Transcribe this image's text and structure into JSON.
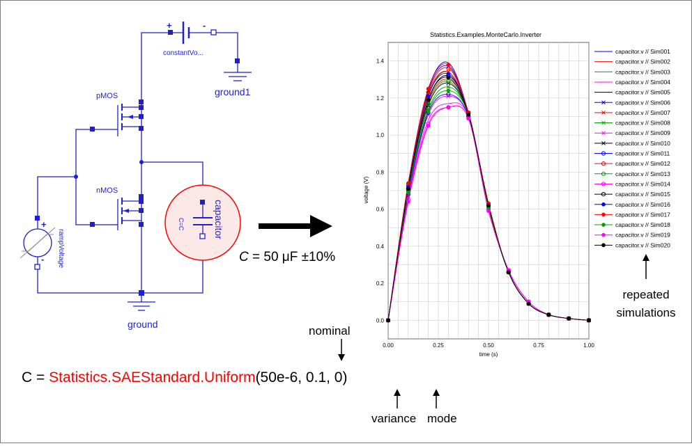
{
  "schematic": {
    "constant_voltage_label": "constantVo...",
    "ground1_label": "ground1",
    "pmos_label": "pMOS",
    "nmos_label": "nMOS",
    "ramp_label": "rampVoltage",
    "capacitor_label": "capacitor",
    "capacitor_param": "C=C",
    "ground_label": "ground",
    "plus": "+",
    "minus": "-"
  },
  "annotations": {
    "capacitance_symbol": "C",
    "capacitance_value": " = 50 μF ±10%",
    "formula_lhs": "C = ",
    "formula_func": "Statistics.SAEStandard.Uniform",
    "formula_args": "(50e-6, 0.1, 0)",
    "nominal": "nominal",
    "variance": "variance",
    "mode": "mode",
    "repeated": "repeated",
    "simulations": "simulations"
  },
  "colors": {
    "accent_red": "#ff0000",
    "schematic_blue": "#1f1fcc",
    "highlight_circle": "#ff0000"
  },
  "chart_data": {
    "type": "line",
    "title": "Statistics.Examples.MonteCarlo.Inverter",
    "xlabel": "time (s)",
    "ylabel": "voltage (V)",
    "xlim": [
      0,
      1
    ],
    "ylim": [
      -0.1,
      1.5
    ],
    "x_ticks": [
      "0.00",
      "0.25",
      "0.50",
      "0.75",
      "1.00"
    ],
    "y_ticks": [
      "0.0",
      "0.2",
      "0.4",
      "0.6",
      "0.8",
      "1.0",
      "1.2",
      "1.4"
    ],
    "grid": true,
    "legend_position": "right",
    "x": [
      0,
      0.1,
      0.2,
      0.3,
      0.4,
      0.5,
      0.6,
      0.7,
      0.8,
      0.9,
      1.0
    ],
    "series": [
      {
        "name": "capacitor.v // Sim001",
        "color": "#0000ff",
        "marker": "none",
        "values": [
          0,
          0.74,
          1.25,
          1.39,
          1.12,
          0.62,
          0.26,
          0.09,
          0.03,
          0.01,
          0
        ]
      },
      {
        "name": "capacitor.v // Sim002",
        "color": "#ff0000",
        "marker": "none",
        "values": [
          0,
          0.7,
          1.18,
          1.3,
          1.12,
          0.62,
          0.26,
          0.09,
          0.03,
          0.01,
          0
        ]
      },
      {
        "name": "capacitor.v // Sim003",
        "color": "#00a000",
        "marker": "none",
        "values": [
          0,
          0.72,
          1.21,
          1.34,
          1.12,
          0.62,
          0.26,
          0.09,
          0.03,
          0.01,
          0
        ]
      },
      {
        "name": "capacitor.v // Sim004",
        "color": "#ff00ff",
        "marker": "none",
        "values": [
          0,
          0.66,
          1.08,
          1.17,
          1.1,
          0.6,
          0.27,
          0.1,
          0.03,
          0.01,
          0
        ]
      },
      {
        "name": "capacitor.v // Sim005",
        "color": "#000000",
        "marker": "none",
        "values": [
          0,
          0.71,
          1.19,
          1.32,
          1.12,
          0.62,
          0.26,
          0.09,
          0.03,
          0.01,
          0
        ]
      },
      {
        "name": "capacitor.v // Sim006",
        "color": "#0000ff",
        "marker": "x",
        "values": [
          0,
          0.73,
          1.24,
          1.37,
          1.12,
          0.62,
          0.26,
          0.09,
          0.03,
          0.01,
          0
        ]
      },
      {
        "name": "capacitor.v // Sim007",
        "color": "#ff0000",
        "marker": "x",
        "values": [
          0,
          0.72,
          1.22,
          1.34,
          1.12,
          0.62,
          0.26,
          0.09,
          0.03,
          0.01,
          0
        ]
      },
      {
        "name": "capacitor.v // Sim008",
        "color": "#00a000",
        "marker": "x",
        "values": [
          0,
          0.69,
          1.14,
          1.26,
          1.11,
          0.61,
          0.26,
          0.09,
          0.03,
          0.01,
          0
        ]
      },
      {
        "name": "capacitor.v // Sim009",
        "color": "#ff00ff",
        "marker": "x",
        "values": [
          0,
          0.67,
          1.11,
          1.21,
          1.1,
          0.6,
          0.27,
          0.1,
          0.03,
          0.01,
          0
        ]
      },
      {
        "name": "capacitor.v // Sim010",
        "color": "#000000",
        "marker": "x",
        "values": [
          0,
          0.7,
          1.16,
          1.28,
          1.11,
          0.61,
          0.26,
          0.09,
          0.03,
          0.01,
          0
        ]
      },
      {
        "name": "capacitor.v // Sim011",
        "color": "#0000ff",
        "marker": "o",
        "values": [
          0,
          0.68,
          1.12,
          1.22,
          1.1,
          0.61,
          0.26,
          0.09,
          0.03,
          0.01,
          0
        ]
      },
      {
        "name": "capacitor.v // Sim012",
        "color": "#ff0000",
        "marker": "o",
        "values": [
          0,
          0.73,
          1.23,
          1.36,
          1.12,
          0.63,
          0.26,
          0.09,
          0.03,
          0.01,
          0
        ]
      },
      {
        "name": "capacitor.v // Sim013",
        "color": "#00a000",
        "marker": "o",
        "values": [
          0,
          0.7,
          1.17,
          1.29,
          1.11,
          0.61,
          0.26,
          0.09,
          0.03,
          0.01,
          0
        ]
      },
      {
        "name": "capacitor.v // Sim014",
        "color": "#ff00ff",
        "marker": "o",
        "values": [
          0,
          0.65,
          1.06,
          1.15,
          1.09,
          0.6,
          0.27,
          0.1,
          0.03,
          0.01,
          0
        ]
      },
      {
        "name": "capacitor.v // Sim015",
        "color": "#000000",
        "marker": "o",
        "values": [
          0,
          0.71,
          1.19,
          1.32,
          1.12,
          0.62,
          0.26,
          0.09,
          0.03,
          0.01,
          0
        ]
      },
      {
        "name": "capacitor.v // Sim016",
        "color": "#0000ff",
        "marker": "dot",
        "values": [
          0,
          0.72,
          1.21,
          1.33,
          1.12,
          0.62,
          0.26,
          0.09,
          0.03,
          0.01,
          0
        ]
      },
      {
        "name": "capacitor.v // Sim017",
        "color": "#ff0000",
        "marker": "dot",
        "values": [
          0,
          0.74,
          1.25,
          1.38,
          1.12,
          0.63,
          0.26,
          0.09,
          0.03,
          0.01,
          0
        ]
      },
      {
        "name": "capacitor.v // Sim018",
        "color": "#00a000",
        "marker": "dot",
        "values": [
          0,
          0.69,
          1.13,
          1.24,
          1.11,
          0.61,
          0.26,
          0.09,
          0.03,
          0.01,
          0
        ]
      },
      {
        "name": "capacitor.v // Sim019",
        "color": "#ff00ff",
        "marker": "dot",
        "values": [
          0,
          0.64,
          1.05,
          1.15,
          1.09,
          0.59,
          0.27,
          0.1,
          0.03,
          0.01,
          0
        ]
      },
      {
        "name": "capacitor.v // Sim020",
        "color": "#000000",
        "marker": "dot",
        "values": [
          0,
          0.71,
          1.19,
          1.31,
          1.11,
          0.62,
          0.26,
          0.09,
          0.03,
          0.01,
          0
        ]
      }
    ]
  }
}
